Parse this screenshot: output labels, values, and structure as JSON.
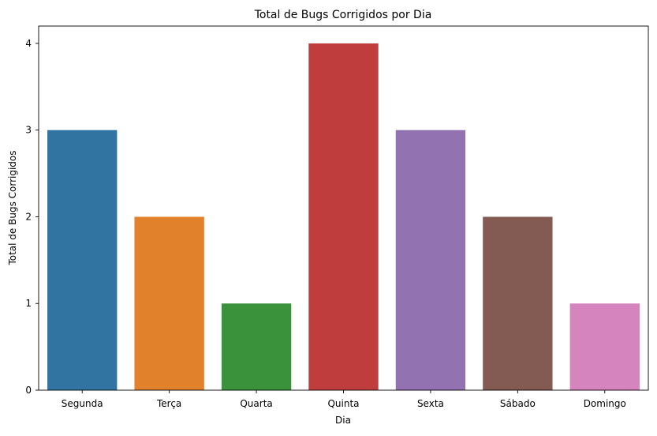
{
  "chart_data": {
    "type": "bar",
    "title": "Total de Bugs Corrigidos por Dia",
    "xlabel": "Dia",
    "ylabel": "Total de Bugs Corrigidos",
    "categories": [
      "Segunda",
      "Terça",
      "Quarta",
      "Quinta",
      "Sexta",
      "Sábado",
      "Domingo"
    ],
    "values": [
      3,
      2,
      1,
      4,
      3,
      2,
      1
    ],
    "colors": [
      "#3274a1",
      "#e1812c",
      "#3a923a",
      "#c03d3e",
      "#9372b2",
      "#845b53",
      "#d684bd"
    ],
    "ylim": [
      0,
      4.2
    ],
    "yticks": [
      0,
      1,
      2,
      3,
      4
    ],
    "grid": false,
    "legend": "none"
  }
}
